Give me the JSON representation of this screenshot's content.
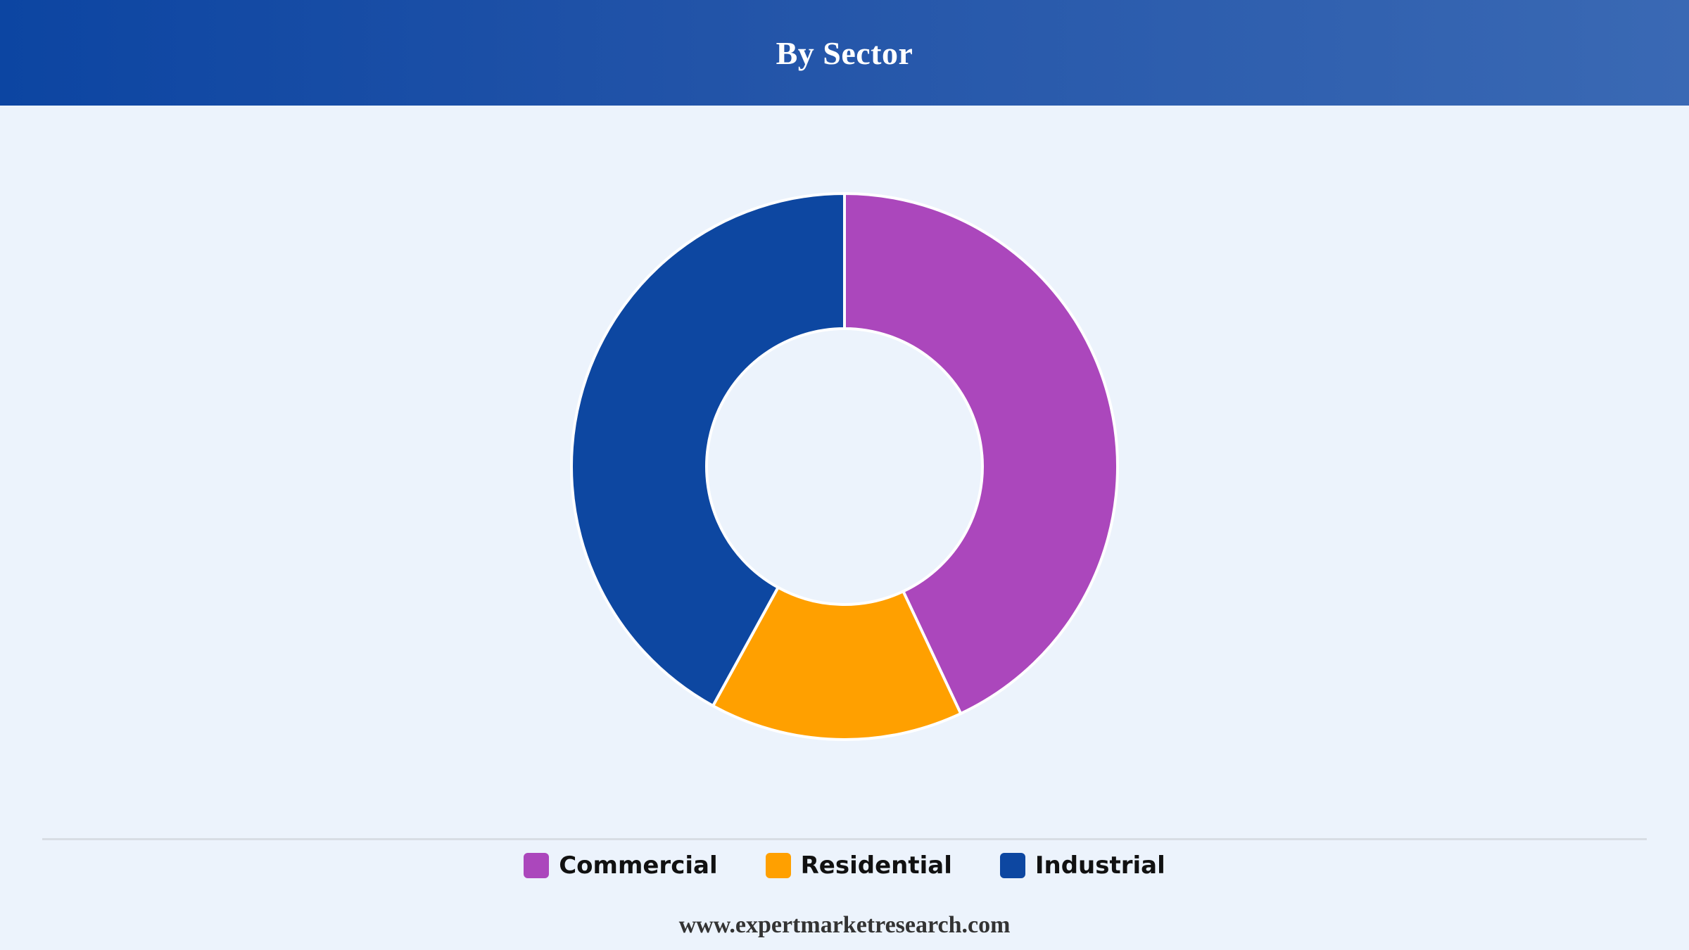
{
  "header": {
    "title": "By Sector"
  },
  "chart_data": {
    "type": "pie",
    "variant": "donut",
    "categories": [
      "Commercial",
      "Residential",
      "Industrial"
    ],
    "values": [
      43,
      15,
      42
    ],
    "colors": [
      "#ab47bc",
      "#ffa000",
      "#0d47a1"
    ],
    "legend_position": "bottom",
    "title": "By Sector"
  },
  "legend": {
    "items": [
      {
        "label": "Commercial",
        "color": "#ab47bc"
      },
      {
        "label": "Residential",
        "color": "#ffa000"
      },
      {
        "label": "Industrial",
        "color": "#0d47a1"
      }
    ]
  },
  "footer": {
    "source": "www.expertmarketresearch.com"
  }
}
